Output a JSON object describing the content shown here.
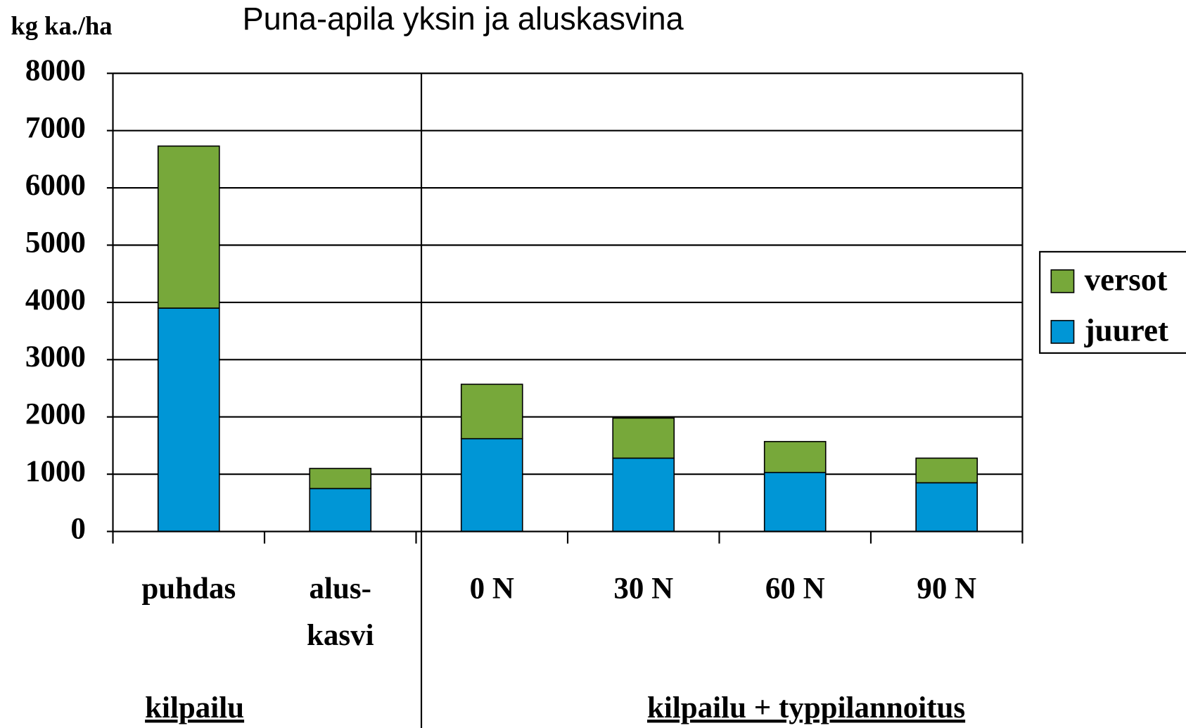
{
  "chart_data": {
    "type": "stacked_bar",
    "title": "Puna-apila yksin ja aluskasvina",
    "y_label": "kg ka./ha",
    "categories": [
      "puhdas",
      "alus-\nkasvi",
      "0 N",
      "30 N",
      "60 N",
      "90 N"
    ],
    "series": [
      {
        "name": "juuret",
        "color": "#0096d6",
        "values": [
          3900,
          750,
          1620,
          1280,
          1030,
          850
        ]
      },
      {
        "name": "versot",
        "color": "#77a83a",
        "values": [
          2830,
          350,
          950,
          700,
          540,
          430
        ]
      }
    ],
    "group_labels": [
      "kilpailu",
      "kilpailu + typpilannoitus"
    ],
    "ylim": [
      0,
      8000
    ],
    "yticks": [
      0,
      1000,
      2000,
      3000,
      4000,
      5000,
      6000,
      7000,
      8000
    ],
    "grid": true,
    "legend": "right"
  }
}
